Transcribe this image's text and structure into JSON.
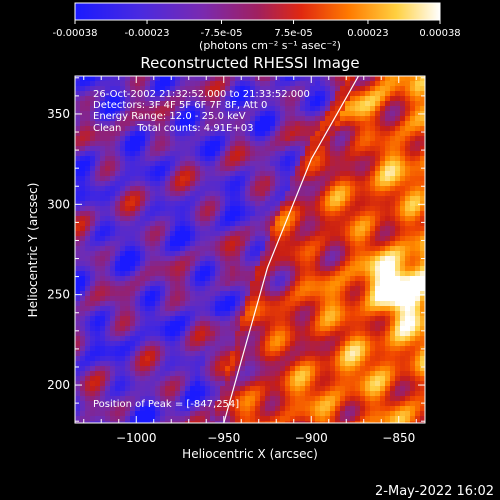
{
  "colorbar": {
    "tick_labels": [
      "-0.00038",
      "-0.00023",
      "-7.5e-05",
      "7.5e-05",
      "0.00023",
      "0.00038"
    ],
    "tick_values": [
      -0.00038,
      -0.00023,
      -7.5e-05,
      7.5e-05,
      0.00023,
      0.00038
    ],
    "range": [
      -0.00038,
      0.00038
    ],
    "unit_label": "(photons cm⁻² s⁻¹ asec⁻²)",
    "colors": [
      "#1a1aff",
      "#5a28d8",
      "#8a2aa8",
      "#b0203a",
      "#ff3300",
      "#ff9900",
      "#ffe060",
      "#ffffff"
    ]
  },
  "chart_data": {
    "type": "heatmap",
    "title": "Reconstructed RHESSI Image",
    "xlabel": "Heliocentric X (arcsec)",
    "ylabel": "Heliocentric Y (arcsec)",
    "xlim": [
      -1035,
      -835
    ],
    "ylim": [
      179,
      371
    ],
    "x_ticks": [
      -1000,
      -950,
      -900,
      -850
    ],
    "x_tick_labels": [
      "−1000",
      "−950",
      "−900",
      "−850"
    ],
    "y_ticks": [
      200,
      250,
      300,
      350
    ],
    "y_tick_labels": [
      "200",
      "250",
      "300",
      "350"
    ],
    "annotations": [
      "26-Oct-2002 21:32:52.000 to 21:33:52.000",
      "Detectors: 3F 4F 5F 6F 7F 8F, Att 0",
      "Energy Range: 12.0 - 25.0 keV",
      "Clean     Total counts: 4.91E+03"
    ],
    "peak_label": "Position of Peak = [-847,254]",
    "peak": [
      -847,
      254
    ],
    "limb_line": [
      [
        -950,
        179
      ],
      [
        -925,
        265
      ],
      [
        -900,
        325
      ],
      [
        -873,
        371
      ]
    ]
  },
  "footer": {
    "timestamp": "2-May-2022 16:02"
  }
}
